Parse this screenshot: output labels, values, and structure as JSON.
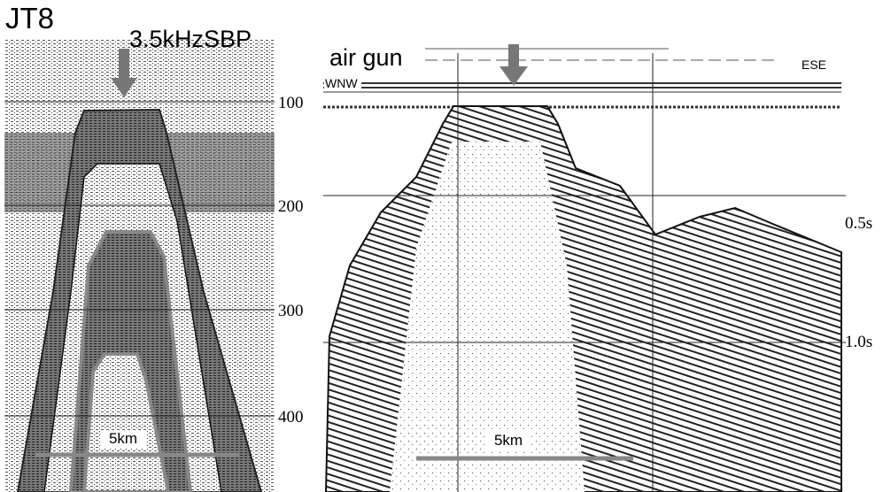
{
  "left_panel": {
    "title": "JT8",
    "subtitle": "3.5kHzSBP",
    "depth_labels": [
      "100",
      "200",
      "300",
      "400"
    ],
    "scale_label": "5km"
  },
  "right_panel": {
    "title": "air gun",
    "west_label": "WNW",
    "east_label": "ESE",
    "time_labels": [
      "0.5s",
      "1.0s"
    ],
    "scale_label": "5km"
  }
}
